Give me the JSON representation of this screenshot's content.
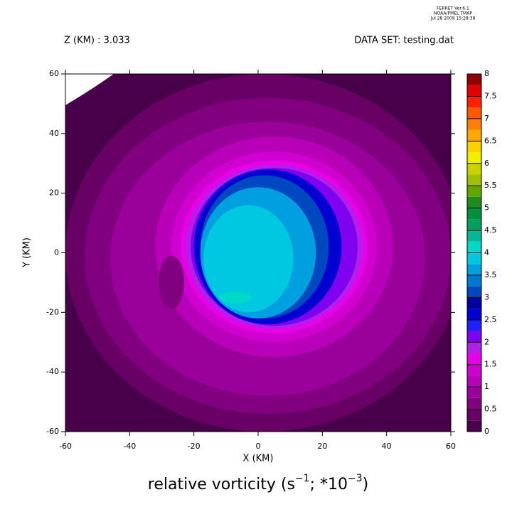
{
  "chart_data": {
    "type": "contourf",
    "header": {
      "left": "Z (KM) : 3.033",
      "right": "DATA SET: testing.dat",
      "stamp": [
        "FERRET  Ver.6.1",
        "NOAA/PMEL TMAP",
        "Jul 28 2009 15:28:38"
      ]
    },
    "title": {
      "a": "relative vorticity (s",
      "b": "−1",
      "c": "; *10",
      "d": "−3",
      "e": ")"
    },
    "x_label": "X (KM)",
    "y_label": "Y (KM)",
    "xlim": [
      -60,
      60
    ],
    "ylim": [
      -60,
      60
    ],
    "xticks": [
      -60,
      -40,
      -20,
      0,
      20,
      40,
      60
    ],
    "yticks": [
      -60,
      -40,
      -20,
      0,
      20,
      40,
      60
    ],
    "levels": [
      0,
      0.25,
      0.5,
      0.75,
      1,
      1.25,
      1.5,
      1.75,
      2,
      2.25,
      2.5,
      2.75,
      3,
      3.25,
      3.5,
      3.75,
      4,
      4.25,
      4.5,
      4.75,
      5,
      5.25,
      5.5,
      5.75,
      6,
      6.25,
      6.5,
      6.75,
      7,
      7.25,
      7.5,
      7.75,
      8
    ],
    "level_ticks": [
      0,
      0.5,
      1,
      1.5,
      2,
      2.5,
      3,
      3.5,
      4,
      4.5,
      5,
      5.5,
      6,
      6.5,
      7,
      7.5,
      8
    ],
    "colors": [
      "#48004a",
      "#680066",
      "#800080",
      "#9a009a",
      "#b800b8",
      "#d000d0",
      "#e800e8",
      "#b020e8",
      "#8000f0",
      "#2020ff",
      "#0000d0",
      "#0000a0",
      "#0048c0",
      "#0078d0",
      "#00a0e0",
      "#00c8e0",
      "#00d8c8",
      "#00b898",
      "#00a060",
      "#00903c",
      "#208c20",
      "#60a800",
      "#a0c000",
      "#c8d400",
      "#f0f000",
      "#ffd000",
      "#ffa800",
      "#ff8000",
      "#ff5800",
      "#ff2000",
      "#e00000",
      "#900000"
    ],
    "regions": [
      {
        "level": 0.25,
        "cx": 2,
        "cy": 0,
        "rx": 62,
        "ry": 60
      },
      {
        "level": 0.5,
        "cx": 3,
        "cy": -1,
        "rx": 57,
        "ry": 53
      },
      {
        "level": 0.75,
        "cx": 3,
        "cy": -2,
        "rx": 49,
        "ry": 46
      },
      {
        "level": 1,
        "cx": 5,
        "cy": 2,
        "rx": 37,
        "ry": 37
      },
      {
        "level": 1.25,
        "cx": 5,
        "cy": 2,
        "rx": 32,
        "ry": 32
      },
      {
        "level": 1.5,
        "cx": 5,
        "cy": 2,
        "rx": 29,
        "ry": 29
      },
      {
        "level": 1.75,
        "cx": 5,
        "cy": 2,
        "rx": 27.5,
        "ry": 27.5
      },
      {
        "level": 2,
        "cx": 5,
        "cy": 2,
        "rx": 26,
        "ry": 26.5
      },
      {
        "level": 2.5,
        "cx": 3,
        "cy": 2,
        "rx": 23,
        "ry": 26
      },
      {
        "level": 3,
        "cx": 2,
        "cy": 2,
        "rx": 20,
        "ry": 24
      },
      {
        "level": 3.5,
        "cx": 0,
        "cy": 0,
        "rx": 18,
        "ry": 22
      },
      {
        "level": 3.75,
        "cx": -3,
        "cy": -2,
        "rx": 14,
        "ry": 18
      },
      {
        "level": 4,
        "cx": -7,
        "cy": -15,
        "rx": 5,
        "ry": 2
      },
      {
        "level": 0.5,
        "cx": -27,
        "cy": -10,
        "rx": 4,
        "ry": 9
      }
    ]
  }
}
